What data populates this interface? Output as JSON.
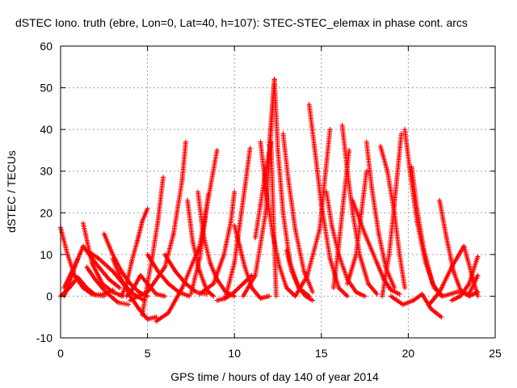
{
  "chart_data": {
    "type": "scatter",
    "title": "dSTEC Iono. truth (ebre, Lon=0, Lat=40, h=107): STEC-STEC_elemax in phase cont. arcs",
    "xlabel": "GPS time / hours of day 140 of year 2014",
    "ylabel": "dSTEC  / TECUs",
    "xlim": [
      0,
      25
    ],
    "ylim": [
      -10,
      60
    ],
    "xticks": [
      "0",
      "5",
      "10",
      "15",
      "20",
      "25"
    ],
    "yticks": [
      "-10",
      "0",
      "10",
      "20",
      "30",
      "40",
      "50",
      "60"
    ],
    "grid": true,
    "marker": "+",
    "color": "#ff0000",
    "series": [
      {
        "x": [
          0.0,
          0.4,
          0.8,
          1.3,
          1.8,
          2.5
        ],
        "y": [
          16.5,
          10.0,
          5.0,
          2.0,
          0.5,
          0.0
        ]
      },
      {
        "x": [
          0.0,
          0.5,
          1.0,
          1.5,
          2.0,
          2.5,
          3.0
        ],
        "y": [
          0.0,
          2.0,
          4.5,
          2.0,
          0.3,
          0.5,
          1.5
        ]
      },
      {
        "x": [
          0.2,
          0.5,
          0.9,
          1.3,
          2.0,
          2.8,
          3.4
        ],
        "y": [
          0.0,
          3.0,
          8.0,
          12.0,
          8.0,
          4.0,
          2.0
        ]
      },
      {
        "x": [
          1.3,
          1.8,
          2.4,
          3.0,
          3.6
        ],
        "y": [
          17.5,
          8.0,
          3.0,
          1.0,
          0.0
        ]
      },
      {
        "x": [
          0.2,
          0.6,
          1.0
        ],
        "y": [
          2.0,
          5.5,
          9.0
        ]
      },
      {
        "x": [
          1.5,
          2.0,
          2.6,
          3.3,
          3.9
        ],
        "y": [
          7.0,
          4.0,
          1.0,
          -1.5,
          -2.0
        ]
      },
      {
        "x": [
          2.5,
          3.0,
          3.5,
          4.0,
          4.5,
          5.0
        ],
        "y": [
          15.0,
          10.0,
          6.0,
          3.0,
          1.0,
          0.0
        ]
      },
      {
        "x": [
          1.5,
          2.2,
          3.0,
          3.6,
          4.2,
          4.8
        ],
        "y": [
          11.0,
          9.0,
          6.0,
          3.0,
          0.5,
          -1.0
        ]
      },
      {
        "x": [
          3.0,
          3.5,
          4.0,
          4.5,
          5.0,
          5.5
        ],
        "y": [
          9.0,
          4.0,
          0.0,
          -3.0,
          -5.5,
          -5.0
        ]
      },
      {
        "x": [
          3.8,
          4.2,
          4.6,
          5.0,
          5.5,
          6.0
        ],
        "y": [
          0.0,
          2.0,
          5.0,
          3.0,
          0.5,
          0.0
        ]
      },
      {
        "x": [
          3.5,
          3.8,
          4.1,
          4.4,
          4.7,
          5.0
        ],
        "y": [
          0.0,
          3.0,
          8.5,
          13.0,
          18.0,
          21.0
        ]
      },
      {
        "x": [
          4.7,
          5.0,
          5.3,
          5.6,
          5.9
        ],
        "y": [
          -4.5,
          3.0,
          10.0,
          18.0,
          28.5
        ]
      },
      {
        "x": [
          4.0,
          5.0,
          6.0,
          6.5,
          7.0,
          7.2
        ],
        "y": [
          -1.0,
          1.0,
          7.0,
          15.0,
          28.0,
          37.0
        ]
      },
      {
        "x": [
          5.5,
          6.2,
          7.0,
          8.0,
          9.0
        ],
        "y": [
          -6.0,
          -4.0,
          2.0,
          12.0,
          35.0
        ]
      },
      {
        "x": [
          5.0,
          5.6,
          6.2,
          6.8,
          7.4
        ],
        "y": [
          10.0,
          6.0,
          3.0,
          1.0,
          0.0
        ]
      },
      {
        "x": [
          6.0,
          6.6,
          7.2,
          7.8,
          8.4
        ],
        "y": [
          10.0,
          6.0,
          3.0,
          1.0,
          0.5
        ]
      },
      {
        "x": [
          7.3,
          7.6,
          8.0,
          8.4,
          8.8
        ],
        "y": [
          23.0,
          13.0,
          6.0,
          1.5,
          0.0
        ]
      },
      {
        "x": [
          7.5,
          8.0,
          8.3,
          8.5
        ],
        "y": [
          0.5,
          9.0,
          18.0,
          24.5
        ]
      },
      {
        "x": [
          7.9,
          8.2,
          8.6,
          9.0,
          9.5,
          10.0
        ],
        "y": [
          25.0,
          15.0,
          8.0,
          4.0,
          1.0,
          0.0
        ]
      },
      {
        "x": [
          8.0,
          8.8,
          9.4,
          9.8,
          10.0
        ],
        "y": [
          0.5,
          3.0,
          10.0,
          18.0,
          25.0
        ]
      },
      {
        "x": [
          9.0,
          9.5,
          10.0,
          10.5,
          11.0
        ],
        "y": [
          -1.0,
          -0.5,
          1.0,
          3.0,
          5.0
        ]
      },
      {
        "x": [
          10.0,
          10.3,
          10.6,
          11.0,
          11.5,
          12.0
        ],
        "y": [
          17.0,
          12.0,
          7.0,
          2.0,
          -0.5,
          0.0
        ]
      },
      {
        "x": [
          9.5,
          10.0,
          10.3,
          10.6,
          10.9
        ],
        "y": [
          0.0,
          8.0,
          17.0,
          26.0,
          35.5
        ]
      },
      {
        "x": [
          11.2,
          11.5,
          11.8,
          12.1,
          12.4
        ],
        "y": [
          14.0,
          22.0,
          30.0,
          37.0,
          0.0
        ]
      },
      {
        "x": [
          11.5,
          11.8,
          12.2,
          12.6,
          13.0,
          13.5
        ],
        "y": [
          37.0,
          26.0,
          15.0,
          7.0,
          2.0,
          0.0
        ]
      },
      {
        "x": [
          12.0,
          12.3
        ],
        "y": [
          36.0,
          52.0
        ]
      },
      {
        "x": [
          10.5,
          11.2,
          11.8,
          12.3
        ],
        "y": [
          0.0,
          5.0,
          20.0,
          52.0
        ]
      },
      {
        "x": [
          12.3,
          12.5,
          12.8,
          13.2,
          13.7,
          14.3
        ],
        "y": [
          52.0,
          35.0,
          20.0,
          8.0,
          2.0,
          0.0
        ]
      },
      {
        "x": [
          12.8,
          13.1,
          13.5,
          14.0,
          14.5
        ],
        "y": [
          39.0,
          28.0,
          16.0,
          6.0,
          1.0
        ]
      },
      {
        "x": [
          13.0,
          13.3,
          13.7,
          14.1,
          14.5
        ],
        "y": [
          11.0,
          6.0,
          2.0,
          0.0,
          -1.0
        ]
      },
      {
        "x": [
          14.3,
          14.6,
          15.0,
          15.5,
          16.0,
          16.5
        ],
        "y": [
          46.0,
          36.0,
          22.0,
          9.0,
          2.0,
          0.0
        ]
      },
      {
        "x": [
          13.5,
          14.2,
          14.9,
          15.5
        ],
        "y": [
          0.0,
          5.0,
          16.0,
          40.0
        ]
      },
      {
        "x": [
          15.3,
          15.6,
          16.0,
          16.5,
          17.0,
          17.5
        ],
        "y": [
          25.0,
          17.0,
          10.0,
          4.0,
          1.0,
          0.0
        ]
      },
      {
        "x": [
          15.7,
          16.0,
          16.3,
          16.6
        ],
        "y": [
          2.0,
          12.0,
          24.0,
          35.0
        ]
      },
      {
        "x": [
          16.2,
          16.5,
          16.8,
          17.2,
          17.7,
          18.2
        ],
        "y": [
          41.0,
          30.0,
          20.0,
          10.0,
          3.0,
          0.5
        ]
      },
      {
        "x": [
          16.5,
          17.0,
          17.3,
          17.6
        ],
        "y": [
          3.0,
          10.0,
          20.0,
          30.0
        ]
      },
      {
        "x": [
          17.6,
          17.9,
          18.3,
          18.7,
          19.2
        ],
        "y": [
          37.0,
          26.0,
          15.0,
          7.0,
          2.0
        ]
      },
      {
        "x": [
          16.8,
          17.5,
          18.2,
          18.6,
          19.0,
          19.5
        ],
        "y": [
          23.0,
          15.0,
          8.0,
          4.0,
          1.5,
          0.5
        ]
      },
      {
        "x": [
          18.4,
          18.8,
          19.2,
          19.5,
          19.8
        ],
        "y": [
          36.0,
          30.0,
          20.0,
          10.0,
          2.0
        ]
      },
      {
        "x": [
          18.5,
          18.9,
          19.2,
          19.6
        ],
        "y": [
          0.0,
          10.0,
          22.0,
          39.0
        ]
      },
      {
        "x": [
          19.8,
          20.1,
          20.5,
          21.0,
          21.5,
          22.0
        ],
        "y": [
          40.0,
          30.0,
          18.0,
          8.0,
          2.0,
          0.0
        ]
      },
      {
        "x": [
          20.2,
          20.5,
          20.9,
          21.4,
          21.9
        ],
        "y": [
          31.0,
          21.0,
          11.0,
          3.0,
          0.0
        ]
      },
      {
        "x": [
          19.0,
          19.7,
          20.3,
          20.8,
          21.3,
          21.9
        ],
        "y": [
          0.0,
          -2.0,
          -1.0,
          0.5,
          -3.0,
          -5.0
        ]
      },
      {
        "x": [
          21.8,
          22.2,
          22.6,
          23.0,
          23.5,
          24.0
        ],
        "y": [
          23.0,
          14.0,
          6.0,
          1.5,
          0.0,
          1.0
        ]
      },
      {
        "x": [
          21.2,
          21.8,
          22.5,
          23.2,
          24.0
        ],
        "y": [
          -2.0,
          1.0,
          7.0,
          12.0,
          0.0
        ]
      },
      {
        "x": [
          22.5,
          23.0,
          23.5,
          24.0
        ],
        "y": [
          -1.0,
          0.0,
          3.0,
          9.5
        ]
      },
      {
        "x": [
          22.0,
          22.8,
          23.5,
          24.0
        ],
        "y": [
          0.0,
          1.0,
          0.5,
          5.0
        ]
      }
    ]
  }
}
